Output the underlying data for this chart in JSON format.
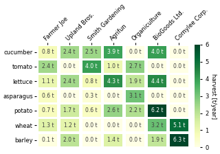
{
  "columns": [
    "Farmer Joe",
    "Upland Bros.",
    "Smith Gardening",
    "Agrifun",
    "Organiculture",
    "BioGoods Ltd.",
    "Cornylee Corp."
  ],
  "rows": [
    "cucumber",
    "tomato",
    "lettuce",
    "asparagus",
    "potato",
    "wheat",
    "barley"
  ],
  "values": [
    [
      0.8,
      2.4,
      2.5,
      3.9,
      0.0,
      4.0,
      0.0
    ],
    [
      2.4,
      0.0,
      4.0,
      1.0,
      2.7,
      0.0,
      0.0
    ],
    [
      1.1,
      2.4,
      0.8,
      4.3,
      1.9,
      4.4,
      0.0
    ],
    [
      0.6,
      0.0,
      0.3,
      0.0,
      3.1,
      0.0,
      0.0
    ],
    [
      0.7,
      1.7,
      0.6,
      2.6,
      2.2,
      6.2,
      0.0
    ],
    [
      1.3,
      1.2,
      0.0,
      0.0,
      0.0,
      3.2,
      5.1
    ],
    [
      0.1,
      2.0,
      0.0,
      1.4,
      0.0,
      1.9,
      6.3
    ]
  ],
  "cmap": "YlGn",
  "vmin": 0,
  "vmax": 6,
  "colorbar_label": "harvest [t/year]",
  "annotation_color_threshold": 3.5,
  "dark_text_color": "#ffffff",
  "light_text_color": "#404040",
  "background_color": "#ffffff",
  "annotation_fontsize": 5.5,
  "tick_fontsize": 6,
  "colorbar_fontsize": 6,
  "colorbar_tick_fontsize": 6
}
